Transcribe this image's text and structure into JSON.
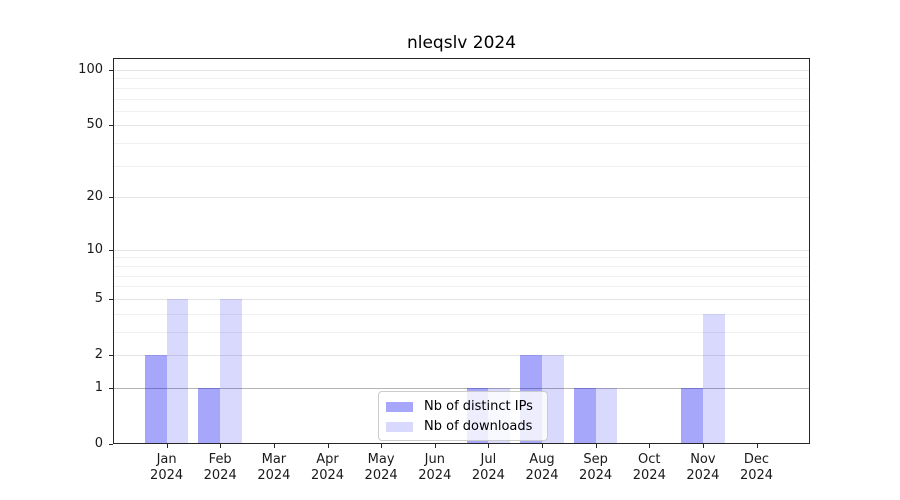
{
  "chart_data": {
    "type": "bar",
    "title": "nleqslv 2024",
    "categories": [
      {
        "month": "Jan",
        "year": "2024"
      },
      {
        "month": "Feb",
        "year": "2024"
      },
      {
        "month": "Mar",
        "year": "2024"
      },
      {
        "month": "Apr",
        "year": "2024"
      },
      {
        "month": "May",
        "year": "2024"
      },
      {
        "month": "Jun",
        "year": "2024"
      },
      {
        "month": "Jul",
        "year": "2024"
      },
      {
        "month": "Aug",
        "year": "2024"
      },
      {
        "month": "Sep",
        "year": "2024"
      },
      {
        "month": "Oct",
        "year": "2024"
      },
      {
        "month": "Nov",
        "year": "2024"
      },
      {
        "month": "Dec",
        "year": "2024"
      }
    ],
    "series": [
      {
        "name": "Nb of distinct IPs",
        "color": "rgba(0,0,240,0.35)",
        "values": [
          2,
          1,
          0,
          0,
          0,
          0,
          1,
          2,
          1,
          0,
          1,
          0
        ]
      },
      {
        "name": "Nb of downloads",
        "color": "rgba(0,0,240,0.15)",
        "values": [
          5,
          5,
          0,
          0,
          0,
          0,
          1,
          2,
          1,
          0,
          4,
          0
        ]
      }
    ],
    "yticks": [
      0,
      1,
      2,
      5,
      10,
      20,
      50,
      100
    ],
    "scale": "log1p",
    "ylim": [
      0,
      116
    ],
    "grid": true,
    "legend_position": "lower center"
  },
  "colors": {
    "bar_ips": "rgba(0,0,240,0.35)",
    "bar_downloads": "rgba(0,0,240,0.15)",
    "grid_minor": "#f0f0f0",
    "grid_major": "#e4e4e4",
    "grid_unit_line": "#b4b4b4",
    "axis": "#262626",
    "legend_border": "#cccccc",
    "legend_bg": "rgba(255,255,255,0.8)"
  }
}
